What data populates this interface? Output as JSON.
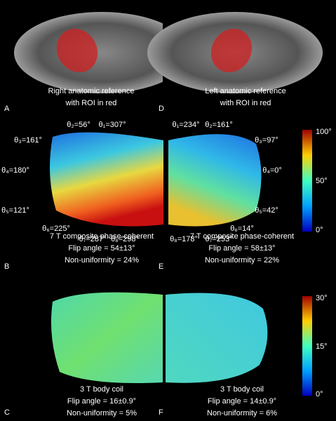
{
  "panels": [
    {
      "letter": "A",
      "caption": [
        "Right anatomic reference",
        "with ROI in red"
      ]
    },
    {
      "letter": "D",
      "caption": [
        "Left anatomic reference",
        "with ROI in red"
      ]
    },
    {
      "letter": "B",
      "caption": [
        "7 T composite phase-coherent",
        "Flip angle = 54±13°",
        "Non-uniformity = 24%"
      ],
      "angles": [
        "θ₂=56°",
        "θ₁=307°",
        "θ₃=161°",
        "θ₄=180°",
        "θ₅=121°",
        "θ₆=225°",
        "θ₇=287°",
        "θ₈=298°"
      ]
    },
    {
      "letter": "E",
      "caption": [
        "7 T composite phase-coherent",
        "Flip angle = 58±13°",
        "Non-uniformity = 22%"
      ],
      "angles": [
        "θ₁=234°",
        "θ₂=161°",
        "θ₃=97°",
        "θ₄=0°",
        "θ₅=42°",
        "θ₆=14°",
        "θ₈=178°",
        "θ₇=253°"
      ]
    },
    {
      "letter": "C",
      "caption": [
        "3 T body coil",
        "Flip angle = 16±0.9°",
        "Non-uniformity = 5%"
      ]
    },
    {
      "letter": "F",
      "caption": [
        "3 T body coil",
        "Flip angle = 14±0.9°",
        "Non-uniformity = 6%"
      ]
    }
  ],
  "colorbars": [
    {
      "labels": [
        "100°",
        "50°",
        "0°"
      ]
    },
    {
      "labels": [
        "30°",
        "15°",
        "0°"
      ]
    }
  ]
}
